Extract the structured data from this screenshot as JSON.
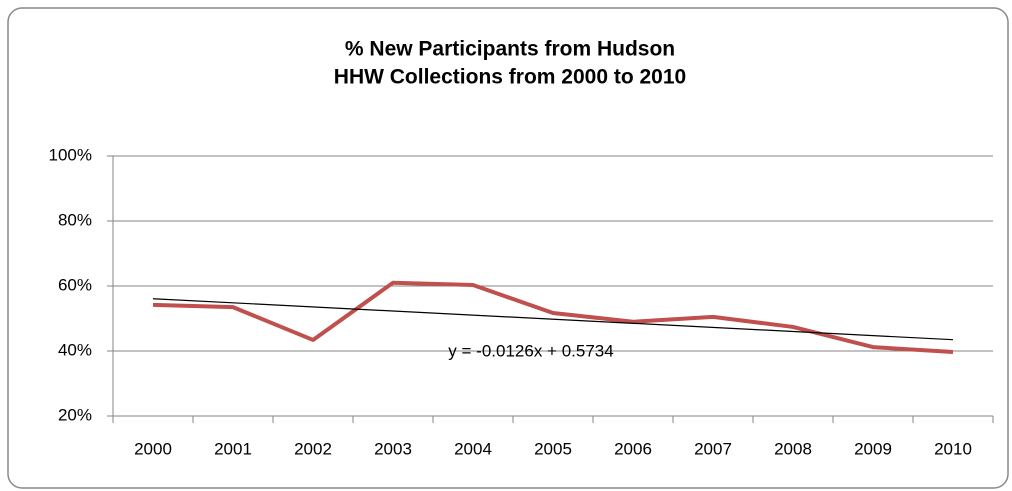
{
  "chart_data": {
    "type": "line",
    "title": [
      "% New Participants from Hudson",
      "HHW Collections from  2000 to 2010"
    ],
    "categories": [
      "2000",
      "2001",
      "2002",
      "2003",
      "2004",
      "2005",
      "2006",
      "2007",
      "2008",
      "2009",
      "2010"
    ],
    "series": [
      {
        "name": "% New Participants",
        "color": "#c0504d",
        "values": [
          54.2,
          53.5,
          43.4,
          61,
          60.3,
          51.7,
          49,
          50.5,
          47.4,
          41.2,
          39.7
        ]
      }
    ],
    "trendline": {
      "label": "y = -0.0126x + 0.5734",
      "values": [
        56.08,
        43.48
      ],
      "color": "#000000"
    },
    "ylim": [
      20,
      100
    ],
    "yticks": [
      {
        "value": 20,
        "label": "20%"
      },
      {
        "value": 40,
        "label": "40%"
      },
      {
        "value": 60,
        "label": "60%"
      },
      {
        "value": 80,
        "label": "80%"
      },
      {
        "value": 100,
        "label": "100%"
      }
    ],
    "grid": true
  }
}
